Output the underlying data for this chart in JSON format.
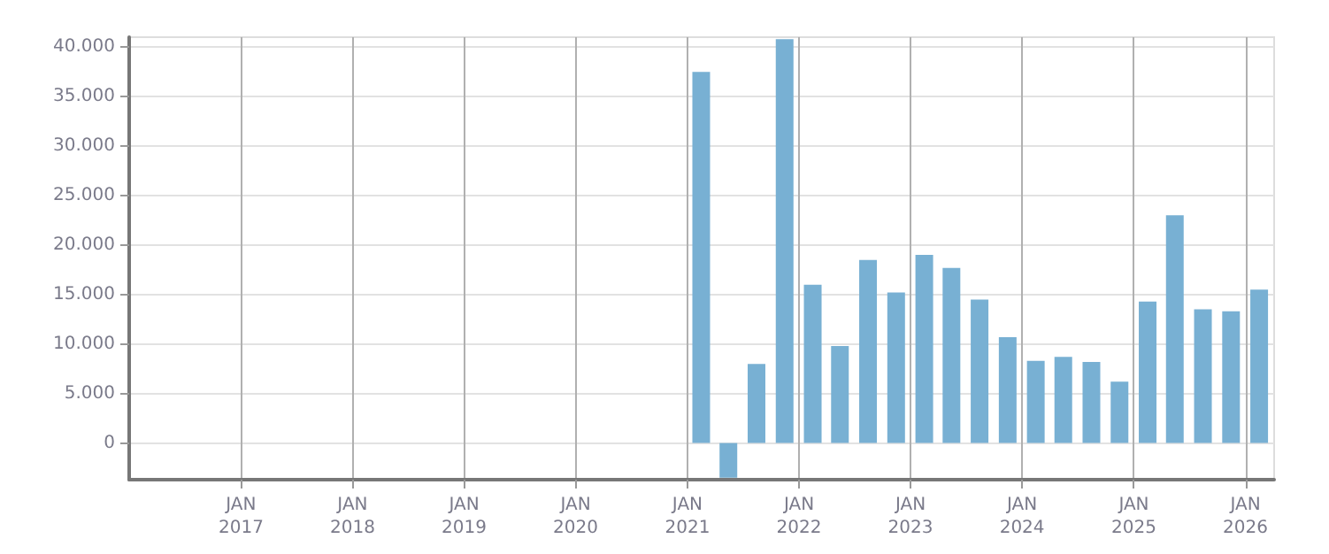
{
  "chart_data": {
    "type": "bar",
    "x": [
      "2021-02-15",
      "2021-05-15",
      "2021-08-15",
      "2021-11-15",
      "2022-02-15",
      "2022-05-15",
      "2022-08-15",
      "2022-11-15",
      "2023-02-15",
      "2023-05-15",
      "2023-08-15",
      "2023-11-15",
      "2024-02-15",
      "2024-05-15",
      "2024-08-15",
      "2024-11-15",
      "2025-02-15",
      "2025-05-15",
      "2025-08-15",
      "2025-11-15",
      "2026-02-15"
    ],
    "series": [
      {
        "color": "#78b0d3",
        "values": [
          37500,
          -3500,
          8000,
          40800,
          16000,
          9800,
          18500,
          15200,
          19000,
          17700,
          14500,
          10700,
          8300,
          8700,
          8200,
          6200,
          14300,
          23000,
          13500,
          13300,
          15500
        ]
      }
    ],
    "xlim": [
      "2016-01-01",
      "2026-04-05"
    ],
    "xticks": [
      {
        "value": "2017-01-01",
        "label": "JAN\n2017"
      },
      {
        "value": "2018-01-01",
        "label": "JAN\n2018"
      },
      {
        "value": "2019-01-01",
        "label": "JAN\n2019"
      },
      {
        "value": "2020-01-01",
        "label": "JAN\n2020"
      },
      {
        "value": "2021-01-01",
        "label": "JAN\n2021"
      },
      {
        "value": "2022-01-01",
        "label": "JAN\n2022"
      },
      {
        "value": "2023-01-01",
        "label": "JAN\n2023"
      },
      {
        "value": "2024-01-01",
        "label": "JAN\n2024"
      },
      {
        "value": "2025-01-01",
        "label": "JAN\n2025"
      },
      {
        "value": "2026-01-01",
        "label": "JAN\n2026"
      }
    ],
    "ylim": [
      -3700,
      41000
    ],
    "yticks": [
      {
        "value": 0,
        "label": "0"
      },
      {
        "value": 5000,
        "label": "5.000"
      },
      {
        "value": 10000,
        "label": "10.000"
      },
      {
        "value": 15000,
        "label": "15.000"
      },
      {
        "value": 20000,
        "label": "20.000"
      },
      {
        "value": 25000,
        "label": "25.000"
      },
      {
        "value": 30000,
        "label": "30.000"
      },
      {
        "value": 35000,
        "label": "35.000"
      },
      {
        "value": 40000,
        "label": "40.000"
      }
    ],
    "grid": true
  }
}
